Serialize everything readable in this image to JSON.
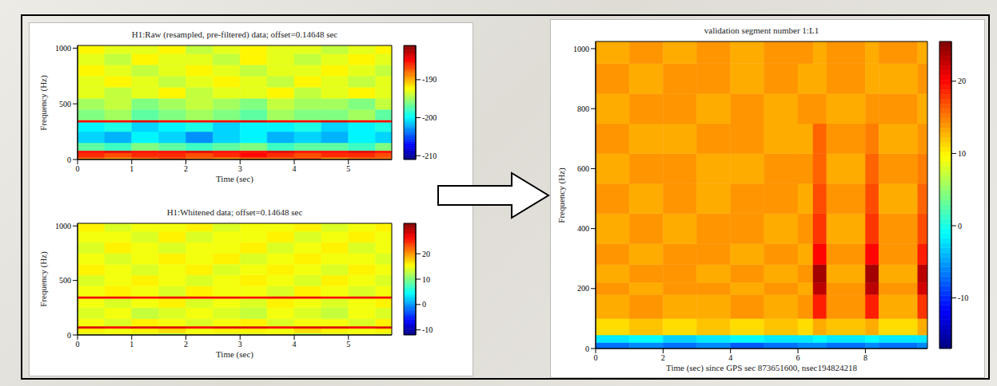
{
  "chart_data": [
    {
      "type": "heatmap",
      "title": "H1:Raw (resampled, pre-filtered) data; offset=0.14648 sec",
      "xlabel": "Time (sec)",
      "ylabel": "Frequency (Hz)",
      "xlim": [
        0,
        5.8
      ],
      "xticks": [
        0,
        1,
        2,
        3,
        4,
        5
      ],
      "ylim": [
        0,
        1024
      ],
      "yticks": [
        0,
        500,
        1000
      ],
      "x_edges": [
        0,
        0.5,
        1,
        1.5,
        2,
        2.5,
        3,
        3.5,
        4,
        4.5,
        5,
        5.5,
        5.8
      ],
      "y_edges": [
        0,
        20,
        60,
        80,
        150,
        250,
        335,
        355,
        450,
        550,
        650,
        750,
        850,
        950,
        1024
      ],
      "cells": [
        [
          -188,
          -189,
          -188,
          -187,
          -188,
          -189,
          -188,
          -188,
          -187,
          -189,
          -188,
          -188
        ],
        [
          -186,
          -187,
          -186,
          -186,
          -187,
          -186,
          -185,
          -186,
          -187,
          -186,
          -186,
          -187
        ],
        [
          -185,
          -184,
          -185,
          -185,
          -184,
          -185,
          -185,
          -184,
          -185,
          -185,
          -184,
          -185
        ],
        [
          -197,
          -198,
          -196,
          -197,
          -198,
          -197,
          -196,
          -198,
          -197,
          -197,
          -198,
          -196
        ],
        [
          -201,
          -202,
          -200,
          -201,
          -203,
          -201,
          -200,
          -202,
          -201,
          -202,
          -200,
          -201
        ],
        [
          -200,
          -199,
          -201,
          -200,
          -199,
          -201,
          -200,
          -200,
          -199,
          -201,
          -200,
          -199
        ],
        [
          -185,
          -185,
          -184,
          -185,
          -185,
          -185,
          -184,
          -185,
          -185,
          -184,
          -185,
          -185
        ],
        [
          -196,
          -195,
          -197,
          -196,
          -195,
          -196,
          -197,
          -195,
          -196,
          -196,
          -195,
          -197
        ],
        [
          -195,
          -194,
          -196,
          -195,
          -194,
          -195,
          -196,
          -194,
          -195,
          -195,
          -196,
          -194
        ],
        [
          -193,
          -194,
          -193,
          -192,
          -194,
          -193,
          -193,
          -192,
          -194,
          -193,
          -192,
          -193
        ],
        [
          -193,
          -192,
          -193,
          -194,
          -193,
          -192,
          -193,
          -194,
          -192,
          -193,
          -194,
          -193
        ],
        [
          -192,
          -193,
          -194,
          -193,
          -192,
          -193,
          -194,
          -193,
          -193,
          -192,
          -193,
          -194
        ],
        [
          -193,
          -194,
          -192,
          -193,
          -193,
          -194,
          -192,
          -193,
          -194,
          -193,
          -192,
          -193
        ],
        [
          -192,
          -193,
          -193,
          -192,
          -194,
          -193,
          -192,
          -193,
          -193,
          -194,
          -193,
          -192
        ]
      ],
      "colorbar_range": [
        -211,
        -181
      ],
      "colorbar_ticks": [
        -210,
        -200,
        -190
      ]
    },
    {
      "type": "heatmap",
      "title": "H1:Whitened data; offset=0.14648 sec",
      "xlabel": "Time (sec)",
      "ylabel": "Frequency (Hz)",
      "xlim": [
        0,
        5.8
      ],
      "xticks": [
        0,
        1,
        2,
        3,
        4,
        5
      ],
      "ylim": [
        0,
        1024
      ],
      "yticks": [
        0,
        500,
        1000
      ],
      "x_edges": [
        0,
        0.5,
        1,
        1.5,
        2,
        2.5,
        3,
        3.5,
        4,
        4.5,
        5,
        5.5,
        5.8
      ],
      "y_edges": [
        0,
        20,
        60,
        80,
        150,
        250,
        335,
        355,
        450,
        550,
        650,
        750,
        850,
        950,
        1024
      ],
      "cells": [
        [
          14,
          15,
          14,
          13,
          15,
          14,
          14,
          15,
          13,
          14,
          15,
          14
        ],
        [
          16,
          15,
          16,
          17,
          15,
          16,
          16,
          15,
          17,
          16,
          15,
          16
        ],
        [
          28,
          27,
          28,
          28,
          27,
          28,
          28,
          27,
          28,
          28,
          27,
          28
        ],
        [
          15,
          14,
          16,
          15,
          14,
          15,
          16,
          14,
          15,
          15,
          14,
          16
        ],
        [
          14,
          15,
          13,
          14,
          15,
          14,
          13,
          15,
          14,
          13,
          15,
          14
        ],
        [
          15,
          14,
          15,
          16,
          14,
          15,
          14,
          16,
          15,
          14,
          15,
          16
        ],
        [
          27,
          27,
          26,
          27,
          27,
          27,
          26,
          27,
          27,
          26,
          27,
          27
        ],
        [
          15,
          16,
          15,
          14,
          16,
          15,
          15,
          14,
          16,
          15,
          14,
          15
        ],
        [
          14,
          15,
          16,
          15,
          14,
          15,
          16,
          15,
          14,
          16,
          15,
          14
        ],
        [
          16,
          15,
          14,
          15,
          16,
          14,
          15,
          16,
          15,
          14,
          16,
          15
        ],
        [
          15,
          14,
          15,
          16,
          15,
          16,
          14,
          15,
          16,
          15,
          15,
          14
        ],
        [
          14,
          16,
          15,
          14,
          15,
          15,
          16,
          14,
          15,
          16,
          14,
          15
        ],
        [
          15,
          15,
          14,
          16,
          14,
          15,
          15,
          16,
          14,
          15,
          16,
          15
        ],
        [
          16,
          14,
          15,
          15,
          16,
          14,
          15,
          15,
          16,
          14,
          15,
          16
        ]
      ],
      "colorbar_range": [
        -12,
        32
      ],
      "colorbar_ticks": [
        -10,
        0,
        10,
        20
      ]
    },
    {
      "type": "heatmap",
      "title": "validation segment number 1:L1",
      "xlabel": "Time (sec) since GPS sec 873651600, nsec194824218",
      "ylabel": "Frequency (Hz)",
      "xlim": [
        0,
        9.84
      ],
      "xticks": [
        0,
        2,
        4,
        6,
        8
      ],
      "ylim": [
        0,
        1024
      ],
      "yticks": [
        0,
        200,
        400,
        600,
        800,
        1000
      ],
      "x_edges": [
        0,
        1,
        2,
        3,
        4,
        5,
        6,
        6.45,
        6.85,
        8,
        8.4,
        9.55,
        9.84
      ],
      "y_edges": [
        0,
        20,
        45,
        100,
        180,
        220,
        280,
        350,
        450,
        550,
        650,
        750,
        850,
        950,
        1024
      ],
      "cells": [
        [
          -7,
          -6,
          -7,
          -6,
          -8,
          -7,
          -6,
          -6,
          -7,
          -6,
          -7,
          -6
        ],
        [
          -2,
          -1,
          -3,
          -2,
          -1,
          -2,
          -2,
          -1,
          -2,
          -1,
          -2,
          -2
        ],
        [
          11,
          12,
          11,
          12,
          11,
          12,
          11,
          13,
          12,
          13,
          11,
          13
        ],
        [
          13,
          14,
          13,
          13,
          14,
          13,
          14,
          19,
          14,
          19,
          13,
          18
        ],
        [
          14,
          13,
          14,
          14,
          13,
          14,
          13,
          23,
          14,
          23,
          14,
          22
        ],
        [
          13,
          14,
          14,
          13,
          14,
          13,
          14,
          24,
          13,
          24,
          13,
          23
        ],
        [
          14,
          13,
          14,
          14,
          13,
          14,
          13,
          20,
          14,
          20,
          14,
          19
        ],
        [
          13,
          14,
          13,
          14,
          14,
          13,
          14,
          18,
          13,
          18,
          14,
          17
        ],
        [
          14,
          13,
          14,
          13,
          14,
          14,
          13,
          17,
          14,
          17,
          13,
          16
        ],
        [
          13,
          14,
          14,
          13,
          13,
          14,
          14,
          16,
          13,
          16,
          14,
          15
        ],
        [
          14,
          13,
          13,
          14,
          14,
          13,
          13,
          16,
          14,
          15,
          13,
          14
        ],
        [
          13,
          14,
          14,
          13,
          14,
          13,
          14,
          14,
          13,
          14,
          14,
          13
        ],
        [
          14,
          13,
          14,
          14,
          13,
          14,
          13,
          13,
          14,
          13,
          13,
          14
        ],
        [
          13,
          14,
          13,
          14,
          13,
          14,
          14,
          13,
          14,
          13,
          14,
          13
        ]
      ],
      "colorbar_range": [
        -17,
        25.5
      ],
      "colorbar_ticks": [
        -10,
        0,
        10,
        20
      ]
    }
  ]
}
